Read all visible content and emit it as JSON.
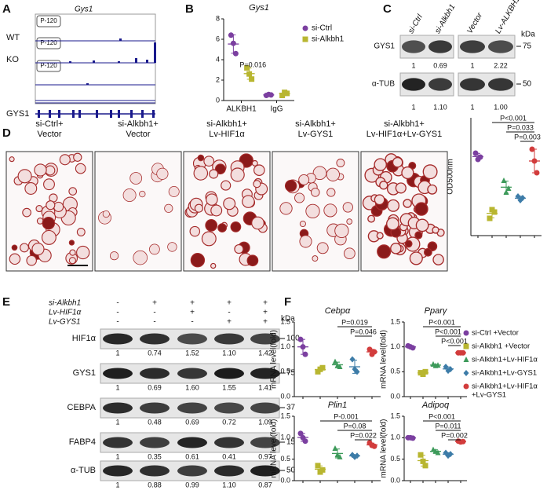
{
  "panels": {
    "letters": [
      "A",
      "B",
      "C",
      "D",
      "E",
      "F"
    ],
    "A": {
      "gene": "Gys1",
      "tracks": [
        "WT",
        "KO"
      ],
      "scale": "P-120",
      "gene_label": "GYS1"
    },
    "C": {
      "lanes": [
        "si-Ctrl",
        "si-Alkbh1",
        "Vector",
        "Lv-ALKBH1"
      ],
      "kda": "kDa",
      "blots": [
        {
          "name": "GYS1",
          "marker": "75",
          "quant": [
            "1",
            "0.69",
            "1",
            "2.22"
          ]
        },
        {
          "name": "α-TUB",
          "marker": "50",
          "quant": [
            "1",
            "1.10",
            "1",
            "1.00"
          ]
        }
      ]
    },
    "D": {
      "labels": [
        [
          "si-Ctrl+",
          "Vector"
        ],
        [
          "si-Alkbh1+",
          "Vector"
        ],
        [
          "si-Alkbh1+",
          "Lv-HIF1α"
        ],
        [
          "si-Alkbh1+",
          "Lv-GYS1"
        ],
        [
          "si-Alkbh1+",
          "Lv-HIF1α+Lv-GYS1"
        ]
      ]
    },
    "E": {
      "conditions": [
        {
          "name": "si-Alkbh1",
          "signs": [
            "-",
            "+",
            "+",
            "+",
            "+"
          ]
        },
        {
          "name": "Lv-HIF1α",
          "signs": [
            "-",
            "-",
            "+",
            "-",
            "+"
          ]
        },
        {
          "name": "Lv-GYS1",
          "signs": [
            "-",
            "-",
            "-",
            "+",
            "+"
          ]
        }
      ],
      "kda": "kDa",
      "blots": [
        {
          "name": "HIF1α",
          "marker": "100",
          "quant": [
            "1",
            "0.74",
            "1.52",
            "1.10",
            "1.42"
          ]
        },
        {
          "name": "GYS1",
          "marker": "75",
          "quant": [
            "1",
            "0.69",
            "1.60",
            "1.55",
            "1.41"
          ]
        },
        {
          "name": "CEBPA",
          "marker": "37",
          "quant": [
            "1",
            "0.48",
            "0.69",
            "0.72",
            "1.09"
          ]
        },
        {
          "name": "FABP4",
          "marker": "15",
          "quant": [
            "1",
            "0.35",
            "0.61",
            "0.41",
            "0.97"
          ]
        },
        {
          "name": "α-TUB",
          "marker": "50",
          "quant": [
            "1",
            "0.88",
            "0.99",
            "1.10",
            "0.87"
          ]
        }
      ]
    },
    "F": {
      "legend": [
        [
          "si-Ctrl +Vector"
        ],
        [
          "si-Alkbh1 +Vector"
        ],
        [
          "si-Alkbh1+Lv-HIF1α"
        ],
        [
          "si-Alkbh1+Lv-GYS1"
        ],
        [
          "si-Alkbh1+Lv-HIF1α",
          "+Lv-GYS1"
        ]
      ]
    }
  },
  "chart_data": [
    {
      "type": "dot",
      "title": "Gys1",
      "categories": [
        "ALKBH1",
        "IgG"
      ],
      "series": [
        {
          "name": "si-Ctrl",
          "color": "#7b3fa0",
          "marker": "circle",
          "values": [
            [
              6.4,
              5.6,
              4.6
            ],
            [
              0.5,
              0.6,
              0.55
            ]
          ]
        },
        {
          "name": "si-Alkbh1",
          "color": "#b8b630",
          "marker": "square",
          "values": [
            [
              3.2,
              2.6,
              2.1
            ],
            [
              0.5,
              0.8,
              0.7
            ]
          ]
        }
      ],
      "ylim": [
        0,
        8
      ],
      "yticks": [
        0,
        2,
        4,
        6,
        8
      ],
      "annotations": [
        "P=0.016"
      ]
    },
    {
      "type": "dot",
      "ylabel": "OD500nm",
      "ylim": [
        0,
        1.5
      ],
      "series": [
        {
          "color": "#7b3fa0",
          "marker": "circle",
          "values": [
            1.05,
            0.97,
            1.0
          ]
        },
        {
          "color": "#b8b630",
          "marker": "square",
          "values": [
            0.22,
            0.33,
            0.3
          ]
        },
        {
          "color": "#3d9a5a",
          "marker": "triangle",
          "values": [
            0.7,
            0.55,
            0.6
          ]
        },
        {
          "color": "#3d7ca8",
          "marker": "diamond",
          "values": [
            0.5,
            0.45,
            0.48
          ]
        },
        {
          "color": "#d23c3c",
          "marker": "circle",
          "values": [
            1.1,
            0.95,
            0.8
          ]
        }
      ],
      "annotations": [
        "P<0.001",
        "P=0.033",
        "P=0.003"
      ]
    },
    {
      "type": "dot",
      "title": "Cebpα",
      "ylabel": "mRNA level(fold)",
      "ylim": [
        0,
        1.5
      ],
      "yticks": [
        {
          "value": 0,
          "label": "0.0"
        },
        0.5,
        {
          "value": 1,
          "label": "1.0"
        },
        1.5
      ],
      "series": [
        {
          "color": "#7b3fa0",
          "marker": "circle",
          "values": [
            1.15,
            1.0,
            0.85
          ]
        },
        {
          "color": "#b8b630",
          "marker": "square",
          "values": [
            0.5,
            0.55,
            0.58
          ]
        },
        {
          "color": "#3d9a5a",
          "marker": "triangle",
          "values": [
            0.7,
            0.62,
            0.6
          ]
        },
        {
          "color": "#3d7ca8",
          "marker": "diamond",
          "values": [
            0.75,
            0.55,
            0.5
          ]
        },
        {
          "color": "#d23c3c",
          "marker": "circle",
          "values": [
            0.95,
            0.85,
            0.9
          ]
        }
      ],
      "annotations": [
        "P=0.019",
        "P=0.046"
      ]
    },
    {
      "type": "dot",
      "title": "Pparγ",
      "ylabel": "mRNA level(fold)",
      "ylim": [
        0,
        1.5
      ],
      "yticks": [
        {
          "value": 0,
          "label": "0.0"
        },
        0.5,
        {
          "value": 1,
          "label": "1.0"
        },
        1.5
      ],
      "series": [
        {
          "color": "#7b3fa0",
          "marker": "circle",
          "values": [
            1.02,
            1.0,
            0.98
          ]
        },
        {
          "color": "#b8b630",
          "marker": "square",
          "values": [
            0.48,
            0.45,
            0.5
          ]
        },
        {
          "color": "#3d9a5a",
          "marker": "triangle",
          "values": [
            0.65,
            0.62,
            0.63
          ]
        },
        {
          "color": "#3d7ca8",
          "marker": "diamond",
          "values": [
            0.6,
            0.52,
            0.55
          ]
        },
        {
          "color": "#d23c3c",
          "marker": "circle",
          "values": [
            0.88,
            0.88,
            0.88
          ]
        }
      ],
      "annotations": [
        "P<0.001",
        "P<0.001",
        "P<0.001"
      ]
    },
    {
      "type": "dot",
      "title": "Plin1",
      "ylabel": "mRNA level(fold)",
      "ylim": [
        0,
        1.5
      ],
      "yticks": [
        {
          "value": 0,
          "label": "0.0"
        },
        0.5,
        {
          "value": 1,
          "label": "1.0"
        },
        1.5
      ],
      "series": [
        {
          "color": "#7b3fa0",
          "marker": "circle",
          "values": [
            1.1,
            1.0,
            0.92
          ]
        },
        {
          "color": "#b8b630",
          "marker": "square",
          "values": [
            0.35,
            0.2,
            0.25
          ]
        },
        {
          "color": "#3d9a5a",
          "marker": "triangle",
          "values": [
            0.75,
            0.6,
            0.55
          ]
        },
        {
          "color": "#3d7ca8",
          "marker": "diamond",
          "values": [
            0.6,
            0.55,
            0.58
          ]
        },
        {
          "color": "#d23c3c",
          "marker": "circle",
          "values": [
            0.88,
            0.82,
            0.8
          ]
        }
      ],
      "annotations": [
        "P-0.001",
        "P=0.08",
        "P=0.022"
      ]
    },
    {
      "type": "dot",
      "title": "Adipoq",
      "ylabel": "mRNA level(fold)",
      "ylim": [
        0,
        1.5
      ],
      "yticks": [
        {
          "value": 0,
          "label": "0.0"
        },
        0.5,
        {
          "value": 1,
          "label": "1.0"
        },
        1.5
      ],
      "series": [
        {
          "color": "#7b3fa0",
          "marker": "circle",
          "values": [
            1.0,
            1.0,
            0.99
          ]
        },
        {
          "color": "#b8b630",
          "marker": "square",
          "values": [
            0.6,
            0.45,
            0.35
          ]
        },
        {
          "color": "#3d9a5a",
          "marker": "triangle",
          "values": [
            0.72,
            0.68,
            0.65
          ]
        },
        {
          "color": "#3d7ca8",
          "marker": "diamond",
          "values": [
            0.65,
            0.58,
            0.62
          ]
        },
        {
          "color": "#d23c3c",
          "marker": "circle",
          "values": [
            0.92,
            0.9,
            0.91
          ]
        }
      ],
      "annotations": [
        "P<0.001",
        "P=0.011",
        "P=0.002"
      ]
    }
  ]
}
